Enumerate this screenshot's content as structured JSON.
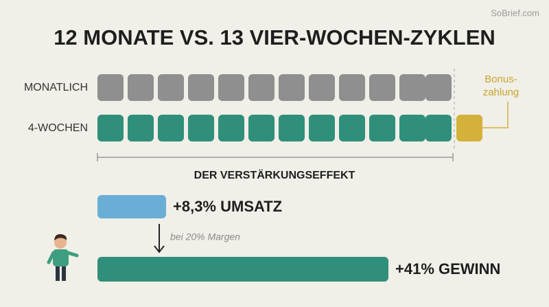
{
  "brand": "SoBrief.com",
  "title": "12 MONATE VS. 13 VIER-WOCHEN-ZYKLEN",
  "rows": {
    "monthly": "MONATLICH",
    "four_weeks": "4-WOCHEN"
  },
  "bonus": {
    "line1": "Bonus-",
    "line2": "zahlung"
  },
  "effect": {
    "title": "DER VERSTÄRKUNGSEFFEKT",
    "revenue": "+8,3% UMSATZ",
    "note": "bei 20% Margen",
    "profit": "+41% GEWINN"
  }
}
